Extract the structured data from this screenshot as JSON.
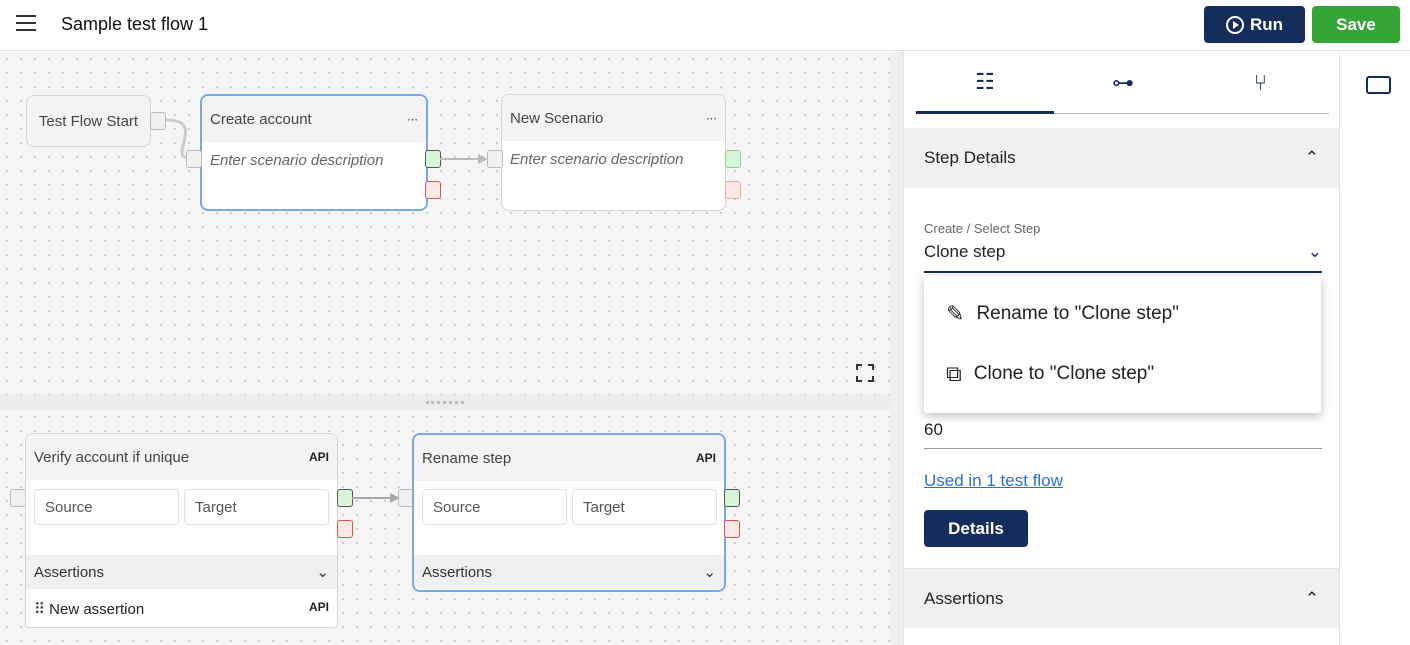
{
  "header": {
    "title": "Sample test flow 1",
    "run_label": "Run",
    "save_label": "Save",
    "run_color": "#152d5c",
    "save_color": "#34a536"
  },
  "flow": {
    "start_label": "Test Flow Start",
    "scenarios": [
      {
        "title": "Create account",
        "description_placeholder": "Enter scenario description",
        "selected": true
      },
      {
        "title": "New Scenario",
        "description_placeholder": "Enter scenario description",
        "selected": false
      }
    ]
  },
  "steps": [
    {
      "title": "Verify account if unique",
      "badge": "API",
      "source": "Source",
      "target": "Target",
      "assertions_label": "Assertions",
      "assertions": [
        {
          "label": "New assertion",
          "badge": "API"
        }
      ]
    },
    {
      "title": "Rename step",
      "badge": "API",
      "source": "Source",
      "target": "Target",
      "assertions_label": "Assertions",
      "assertions": []
    }
  ],
  "panel": {
    "tabs": [
      {
        "icon": "list-details-icon",
        "active": true
      },
      {
        "icon": "hierarchy-icon"
      },
      {
        "icon": "git-fork-icon"
      }
    ],
    "step_details": {
      "title": "Step Details",
      "field_label": "Create / Select Step",
      "field_value": "Clone step",
      "second_value": "60",
      "link": "Used in 1 test flow",
      "details_button": "Details"
    },
    "dropdown": [
      {
        "icon": "edit-icon",
        "label": "Rename to \"Clone step\""
      },
      {
        "icon": "copy-icon",
        "label": "Clone to \"Clone step\""
      }
    ],
    "assertions_title": "Assertions"
  },
  "side": {
    "icon": "ticket-icon"
  }
}
